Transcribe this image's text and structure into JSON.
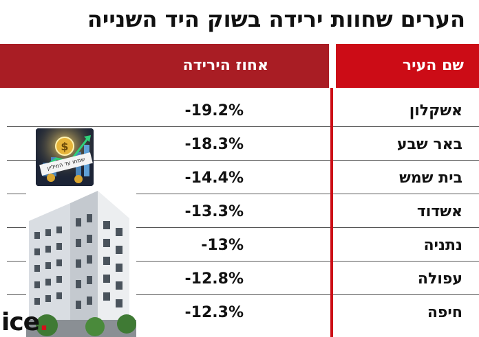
{
  "title": "הערים שחוות ירידה בשוק היד השנייה",
  "header": {
    "city_label": "שם העיר",
    "drop_label": "אחוז הירידה"
  },
  "rows": [
    {
      "city": "אשקלון",
      "pct": "-19.2%"
    },
    {
      "city": "באר שבע",
      "pct": "-18.3%"
    },
    {
      "city": "בית שמש",
      "pct": "-14.4%"
    },
    {
      "city": "אשדוד",
      "pct": "-13.3%"
    },
    {
      "city": "נתניה",
      "pct": "-13%"
    },
    {
      "city": "עפולה",
      "pct": "-12.8%"
    },
    {
      "city": "חיפה",
      "pct": "-12.3%"
    }
  ],
  "chart_data": {
    "type": "table",
    "title": "הערים שחוות ירידה בשוק היד השנייה",
    "columns": [
      "שם העיר",
      "אחוז הירידה"
    ],
    "categories": [
      "אשקלון",
      "באר שבע",
      "בית שמש",
      "אשדוד",
      "נתניה",
      "עפולה",
      "חיפה"
    ],
    "values": [
      -19.2,
      -18.3,
      -14.4,
      -13.3,
      -13,
      -12.8,
      -12.3
    ]
  },
  "images": {
    "thumbnail_icon": "money-growth-image",
    "thumbnail_caption": "שמחו עד המיליון",
    "building_icon": "apartment-building-image"
  },
  "logo": "ice.",
  "colors": {
    "header_city": "#cc0c16",
    "header_drop": "#a91d24",
    "divider": "#cc0c16",
    "text": "#111111",
    "logo_dot": "#d6101a"
  }
}
